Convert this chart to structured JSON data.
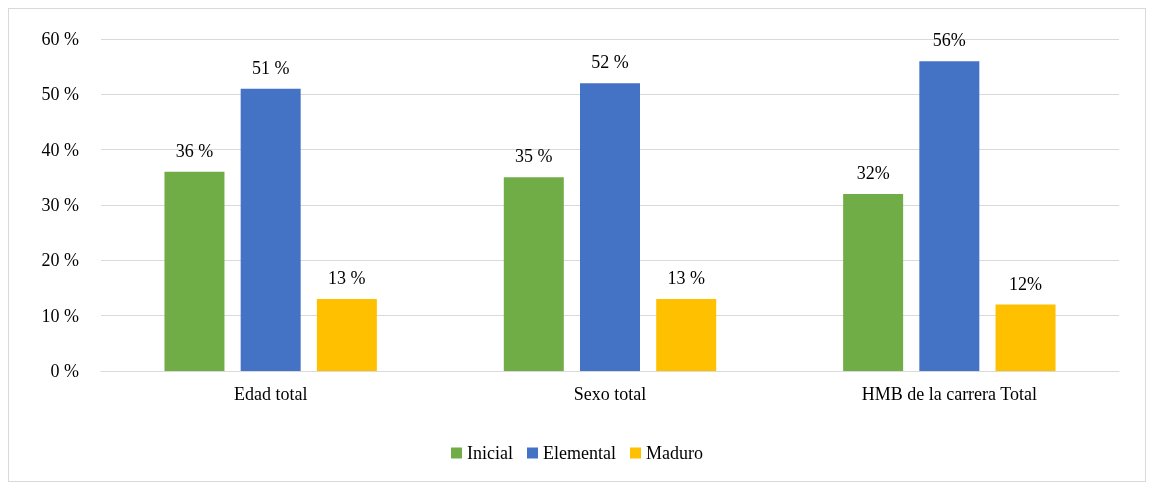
{
  "chart_data": {
    "type": "bar",
    "categories": [
      "Edad total",
      "Sexo total",
      "HMB de la carrera Total"
    ],
    "series": [
      {
        "name": "Inicial",
        "color": "#70ad47",
        "values": [
          36,
          35,
          32
        ],
        "value_labels": [
          "36 %",
          "35 %",
          "32%"
        ]
      },
      {
        "name": "Elemental",
        "color": "#4472c4",
        "values": [
          51,
          52,
          56
        ],
        "value_labels": [
          "51 %",
          "52 %",
          "56%"
        ]
      },
      {
        "name": "Maduro",
        "color": "#ffc000",
        "values": [
          13,
          13,
          12
        ],
        "value_labels": [
          "13 %",
          "13 %",
          "12%"
        ]
      }
    ],
    "ylim": [
      0,
      60
    ],
    "yticks": [
      {
        "value": 0,
        "label": "0 %"
      },
      {
        "value": 10,
        "label": "10 %"
      },
      {
        "value": 20,
        "label": "20 %"
      },
      {
        "value": 30,
        "label": "30 %"
      },
      {
        "value": 40,
        "label": "40 %"
      },
      {
        "value": 50,
        "label": "50 %"
      },
      {
        "value": 60,
        "label": "60 %"
      }
    ],
    "grid": "y",
    "legend": "bottom"
  }
}
